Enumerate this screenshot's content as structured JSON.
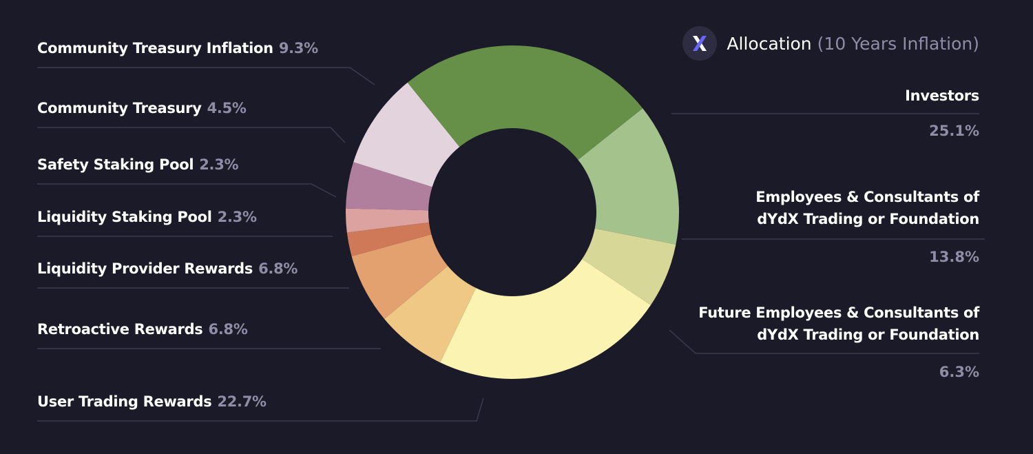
{
  "header": {
    "logo_icon": "dydx-x-logo-icon",
    "title": "Allocation",
    "subtitle": "(10 Years Inflation)"
  },
  "chart_data": {
    "type": "pie",
    "donut": true,
    "title": "Allocation (10 Years Inflation)",
    "slices": [
      {
        "label": "Investors",
        "lines": [
          "Investors"
        ],
        "value": 25.1,
        "pct_label": "25.1%",
        "color": "#668f47"
      },
      {
        "label": "Employees & Consultants of dYdX Trading or Foundation",
        "lines": [
          "Employees & Consultants of",
          "dYdX Trading or Foundation"
        ],
        "value": 13.8,
        "pct_label": "13.8%",
        "color": "#a4c28c"
      },
      {
        "label": "Future Employees & Consultants of dYdX Trading or Foundation",
        "lines": [
          "Future Employees & Consultants of",
          "dYdX Trading or Foundation"
        ],
        "value": 6.3,
        "pct_label": "6.3%",
        "color": "#d7d898"
      },
      {
        "label": "User Trading Rewards",
        "lines": [
          "User Trading Rewards"
        ],
        "value": 22.7,
        "pct_label": "22.7%",
        "color": "#fbf3b2"
      },
      {
        "label": "Retroactive Rewards",
        "lines": [
          "Retroactive Rewards"
        ],
        "value": 6.8,
        "pct_label": "6.8%",
        "color": "#efc886"
      },
      {
        "label": "Liquidity Provider Rewards",
        "lines": [
          "Liquidity Provider Rewards"
        ],
        "value": 6.8,
        "pct_label": "6.8%",
        "color": "#e3a16f"
      },
      {
        "label": "Liquidity Staking Pool",
        "lines": [
          "Liquidity Staking Pool"
        ],
        "value": 2.3,
        "pct_label": "2.3%",
        "color": "#cf7958"
      },
      {
        "label": "Safety Staking Pool",
        "lines": [
          "Safety Staking Pool"
        ],
        "value": 2.3,
        "pct_label": "2.3%",
        "color": "#dba2a0"
      },
      {
        "label": "Community Treasury",
        "lines": [
          "Community Treasury"
        ],
        "value": 4.5,
        "pct_label": "4.5%",
        "color": "#b07f9e"
      },
      {
        "label": "Community Treasury Inflation",
        "lines": [
          "Community Treasury Inflation"
        ],
        "value": 9.3,
        "pct_label": "9.3%",
        "color": "#e3d3dc"
      }
    ]
  }
}
